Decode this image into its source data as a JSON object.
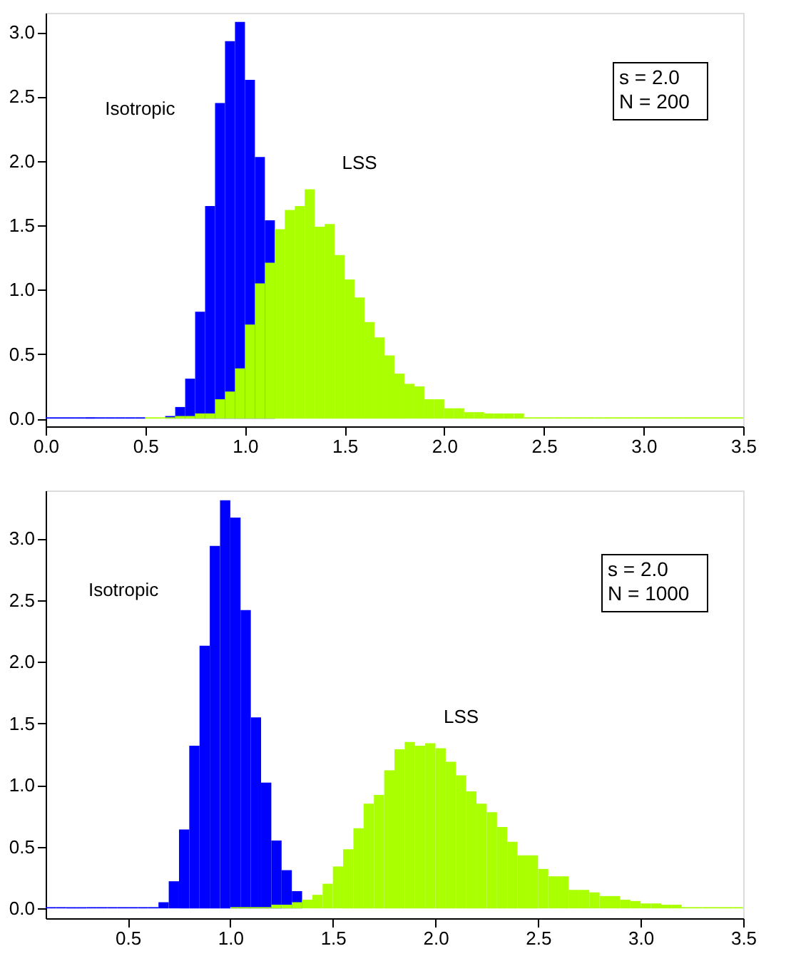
{
  "chart_data": [
    {
      "type": "histogram",
      "xlim": [
        0,
        3.5
      ],
      "ylim": [
        -0.06,
        3.15
      ],
      "xticks": [
        {
          "value": 0,
          "label": "0.0"
        },
        {
          "value": 0.5,
          "label": "0.5"
        },
        {
          "value": 1,
          "label": "1.0"
        },
        {
          "value": 1.5,
          "label": "1.5"
        },
        {
          "value": 2,
          "label": "2.0"
        },
        {
          "value": 2.5,
          "label": "2.5"
        },
        {
          "value": 3,
          "label": "3.0"
        },
        {
          "value": 3.5,
          "label": "3.5"
        }
      ],
      "yticks": [
        {
          "value": 0,
          "label": "0.0"
        },
        {
          "value": 0.5,
          "label": "0.5"
        },
        {
          "value": 1,
          "label": "1.0"
        },
        {
          "value": 1.5,
          "label": "1.5"
        },
        {
          "value": 2,
          "label": "2.0"
        },
        {
          "value": 2.5,
          "label": "2.5"
        },
        {
          "value": 3,
          "label": "3.0"
        }
      ],
      "annotations": [
        "s = 2.0",
        "N = 200"
      ],
      "bins": [
        0,
        0.05,
        0.1,
        0.15,
        0.2,
        0.25,
        0.3,
        0.35,
        0.4,
        0.45,
        0.5,
        0.55,
        0.6,
        0.65,
        0.7,
        0.75,
        0.8,
        0.85,
        0.9,
        0.95,
        1.0,
        1.05,
        1.1,
        1.15,
        1.2,
        1.25,
        1.3,
        1.35,
        1.4,
        1.45,
        1.5,
        1.55,
        1.6,
        1.65,
        1.7,
        1.75,
        1.8,
        1.85,
        1.9,
        1.95,
        2.0,
        2.05,
        2.1,
        2.15,
        2.2,
        2.25,
        2.3,
        2.35,
        2.4,
        2.45,
        2.5,
        2.55,
        2.6,
        2.65,
        2.7,
        2.75,
        2.8,
        2.85,
        2.9,
        2.95,
        3.0,
        3.05,
        3.1,
        3.15,
        3.2,
        3.25,
        3.3,
        3.35,
        3.4,
        3.45,
        3.5
      ],
      "series": [
        {
          "name": "Isotropic",
          "color": "#0000ff",
          "values": [
            0.01,
            0.01,
            0.01,
            0.01,
            0.01,
            0.01,
            0.01,
            0.01,
            0.01,
            0.01,
            null,
            null,
            0.02,
            0.09,
            0.31,
            0.83,
            1.65,
            2.45,
            2.93,
            3.08,
            2.63,
            2.03,
            1.54,
            null,
            null,
            null,
            null,
            null,
            null,
            null,
            null,
            null,
            null,
            null,
            null,
            null,
            null,
            null,
            null,
            null,
            null,
            null,
            null,
            null,
            null,
            null,
            null,
            null,
            null,
            null,
            null,
            null,
            null,
            null,
            null,
            null,
            null,
            null,
            null,
            null,
            null,
            null,
            null,
            null,
            null,
            null,
            null,
            null,
            null,
            null
          ]
        },
        {
          "name": "LSS",
          "color": "#aaff00",
          "values": [
            null,
            null,
            null,
            null,
            null,
            null,
            null,
            null,
            null,
            null,
            0.01,
            0.01,
            0.01,
            0.02,
            0.02,
            0.04,
            0.04,
            0.15,
            0.21,
            0.39,
            0.73,
            1.05,
            1.21,
            1.47,
            1.62,
            1.65,
            1.78,
            1.49,
            1.51,
            1.27,
            1.08,
            0.94,
            0.75,
            0.63,
            0.49,
            0.35,
            0.27,
            0.25,
            0.15,
            0.15,
            0.08,
            0.08,
            0.05,
            0.05,
            0.04,
            0.04,
            0.04,
            0.04,
            0.01,
            0.01,
            0.01,
            0.01,
            0.01,
            0.01,
            0.01,
            0.01,
            0.01,
            0.01,
            0.01,
            0.01,
            0.01,
            0.01,
            0.01,
            0.01,
            0.01,
            0.01,
            0.01,
            0.01,
            0.01,
            0.01
          ]
        }
      ]
    },
    {
      "type": "histogram",
      "xlim": [
        0.1,
        3.5
      ],
      "ylim": [
        -0.08,
        3.39
      ],
      "xticks": [
        {
          "value": 0.5,
          "label": "0.5"
        },
        {
          "value": 1,
          "label": "1.0"
        },
        {
          "value": 1.5,
          "label": "1.5"
        },
        {
          "value": 2,
          "label": "2.0"
        },
        {
          "value": 2.5,
          "label": "2.5"
        },
        {
          "value": 3,
          "label": "3.0"
        },
        {
          "value": 3.5,
          "label": "3.5"
        }
      ],
      "yticks": [
        {
          "value": 0,
          "label": "0.0"
        },
        {
          "value": 0.5,
          "label": "0.5"
        },
        {
          "value": 1,
          "label": "1.0"
        },
        {
          "value": 1.5,
          "label": "1.5"
        },
        {
          "value": 2,
          "label": "2.0"
        },
        {
          "value": 2.5,
          "label": "2.5"
        },
        {
          "value": 3,
          "label": "3.0"
        }
      ],
      "annotations": [
        "s = 2.0",
        "N = 1000"
      ],
      "bins": [
        0.1,
        0.15,
        0.2,
        0.25,
        0.3,
        0.35,
        0.4,
        0.45,
        0.5,
        0.55,
        0.6,
        0.65,
        0.7,
        0.75,
        0.8,
        0.85,
        0.9,
        0.95,
        1.0,
        1.05,
        1.1,
        1.15,
        1.2,
        1.25,
        1.3,
        1.35,
        1.4,
        1.45,
        1.5,
        1.55,
        1.6,
        1.65,
        1.7,
        1.75,
        1.8,
        1.85,
        1.9,
        1.95,
        2.0,
        2.05,
        2.1,
        2.15,
        2.2,
        2.25,
        2.3,
        2.35,
        2.4,
        2.45,
        2.5,
        2.55,
        2.6,
        2.65,
        2.7,
        2.75,
        2.8,
        2.85,
        2.9,
        2.95,
        3.0,
        3.05,
        3.1,
        3.15,
        3.2,
        3.25,
        3.3,
        3.35,
        3.4,
        3.45,
        3.5
      ],
      "series": [
        {
          "name": "Isotropic",
          "color": "#0000ff",
          "values": [
            0.01,
            0.01,
            0.01,
            0.01,
            0.01,
            0.01,
            0.01,
            0.01,
            0.01,
            0.01,
            0.01,
            0.05,
            0.22,
            0.64,
            1.32,
            2.13,
            2.94,
            3.31,
            3.17,
            2.42,
            1.55,
            1.02,
            0.55,
            0.31,
            0.14,
            null,
            null,
            null,
            null,
            null,
            null,
            null,
            null,
            null,
            null,
            null,
            null,
            null,
            null,
            null,
            null,
            null,
            null,
            null,
            null,
            null,
            null,
            null,
            null,
            null,
            null,
            null,
            null,
            null,
            null,
            null,
            null,
            null,
            null,
            null,
            null,
            null,
            null,
            null,
            null,
            null,
            null,
            null
          ]
        },
        {
          "name": "LSS",
          "color": "#aaff00",
          "values": [
            null,
            null,
            null,
            null,
            null,
            null,
            null,
            null,
            null,
            null,
            null,
            null,
            null,
            null,
            null,
            null,
            null,
            null,
            0.01,
            0.01,
            0.01,
            0.01,
            0.03,
            0.03,
            0.05,
            0.07,
            0.11,
            0.2,
            0.34,
            0.48,
            0.65,
            0.85,
            0.92,
            1.12,
            1.29,
            1.35,
            1.32,
            1.34,
            1.3,
            1.19,
            1.08,
            0.95,
            0.85,
            0.78,
            0.66,
            0.54,
            0.43,
            0.43,
            0.32,
            0.26,
            0.26,
            0.15,
            0.15,
            0.13,
            0.1,
            0.1,
            0.07,
            0.06,
            0.04,
            0.04,
            0.03,
            0.03,
            0.01,
            0.01,
            0.01,
            0.01,
            0.01,
            0.01
          ]
        }
      ]
    }
  ]
}
